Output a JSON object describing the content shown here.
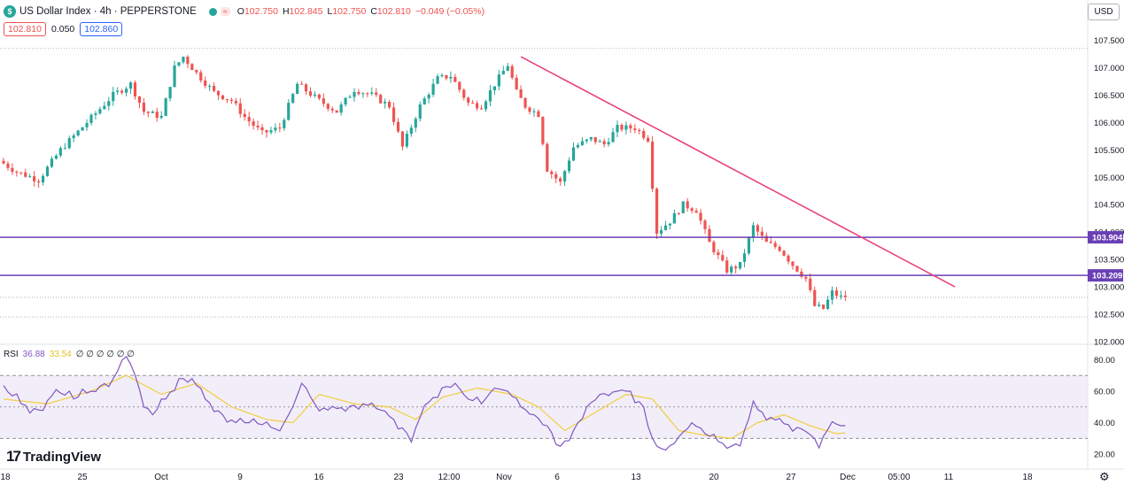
{
  "header": {
    "symbol_badge": "$",
    "title": "US Dollar Index · 4h · PEPPERSTONE",
    "status_pill": "≈",
    "ohlc": [
      {
        "k": "O",
        "v": "102.750"
      },
      {
        "k": "H",
        "v": "102.845"
      },
      {
        "k": "L",
        "v": "102.750"
      },
      {
        "k": "C",
        "v": "102.810"
      },
      {
        "k": "",
        "v": "−0.049 (−0.05%)"
      }
    ],
    "bid": "102.810",
    "spread": "0.050",
    "ask": "102.860"
  },
  "currency_button": "USD",
  "rsi_legend": {
    "label": "RSI",
    "rsi": "36.88",
    "ma": "33.54",
    "extra": "∅ ∅ ∅ ∅ ∅ ∅"
  },
  "logo_text": "TradingView",
  "colors": {
    "up": "#26a69a",
    "down": "#ef5350",
    "trendline": "#e9417d",
    "level": "#6a3fb5",
    "rsi": "#7e57c2",
    "rsi_ma": "#f2d04b",
    "rsi_band": "#ede7f6"
  },
  "chart_data": [
    {
      "type": "candlestick",
      "symbol": "US Dollar Index",
      "interval": "4h",
      "x_ticks": [
        "18",
        "25",
        "Oct",
        "9",
        "16",
        "23",
        "12:00",
        "Nov",
        "6",
        "13",
        "20",
        "27",
        "Dec",
        "05:00",
        "11",
        "18"
      ],
      "y_ticks": [
        102.0,
        102.5,
        103.0,
        103.5,
        104.0,
        104.5,
        105.0,
        105.5,
        106.0,
        106.5,
        107.0,
        107.5
      ],
      "y_tick_labels": [
        "102.000",
        "102.500",
        "103.000",
        "103.500",
        "104.000",
        "104.500",
        "105.000",
        "105.500",
        "106.000",
        "106.500",
        "107.000",
        "107.500"
      ],
      "ylim": [
        102.0,
        107.75
      ],
      "price_path": [
        {
          "i": 0,
          "p": 105.3
        },
        {
          "i": 4,
          "p": 105.1
        },
        {
          "i": 9,
          "p": 104.95
        },
        {
          "i": 14,
          "p": 105.5
        },
        {
          "i": 20,
          "p": 106.0
        },
        {
          "i": 26,
          "p": 106.5
        },
        {
          "i": 30,
          "p": 106.7
        },
        {
          "i": 33,
          "p": 106.2
        },
        {
          "i": 37,
          "p": 106.1
        },
        {
          "i": 40,
          "p": 107.0
        },
        {
          "i": 42,
          "p": 107.2
        },
        {
          "i": 45,
          "p": 106.9
        },
        {
          "i": 49,
          "p": 106.55
        },
        {
          "i": 53,
          "p": 106.4
        },
        {
          "i": 56,
          "p": 106.1
        },
        {
          "i": 60,
          "p": 105.8
        },
        {
          "i": 64,
          "p": 105.9
        },
        {
          "i": 68,
          "p": 106.7
        },
        {
          "i": 73,
          "p": 106.4
        },
        {
          "i": 77,
          "p": 106.2
        },
        {
          "i": 81,
          "p": 106.6
        },
        {
          "i": 85,
          "p": 106.5
        },
        {
          "i": 89,
          "p": 106.3
        },
        {
          "i": 92,
          "p": 105.55
        },
        {
          "i": 96,
          "p": 106.3
        },
        {
          "i": 100,
          "p": 106.8
        },
        {
          "i": 103,
          "p": 106.85
        },
        {
          "i": 107,
          "p": 106.35
        },
        {
          "i": 110,
          "p": 106.3
        },
        {
          "i": 113,
          "p": 106.7
        },
        {
          "i": 116,
          "p": 107.05
        },
        {
          "i": 118,
          "p": 106.55
        },
        {
          "i": 120,
          "p": 106.3
        },
        {
          "i": 123,
          "p": 106.15
        },
        {
          "i": 125,
          "p": 105.15
        },
        {
          "i": 128,
          "p": 104.9
        },
        {
          "i": 131,
          "p": 105.55
        },
        {
          "i": 135,
          "p": 105.7
        },
        {
          "i": 138,
          "p": 105.6
        },
        {
          "i": 141,
          "p": 105.9
        },
        {
          "i": 145,
          "p": 105.9
        },
        {
          "i": 148,
          "p": 105.7
        },
        {
          "i": 150,
          "p": 104.0
        },
        {
          "i": 153,
          "p": 104.2
        },
        {
          "i": 156,
          "p": 104.5
        },
        {
          "i": 159,
          "p": 104.4
        },
        {
          "i": 162,
          "p": 103.8
        },
        {
          "i": 166,
          "p": 103.3
        },
        {
          "i": 169,
          "p": 103.4
        },
        {
          "i": 172,
          "p": 104.1
        },
        {
          "i": 175,
          "p": 103.8
        },
        {
          "i": 178,
          "p": 103.7
        },
        {
          "i": 181,
          "p": 103.4
        },
        {
          "i": 184,
          "p": 103.15
        },
        {
          "i": 186,
          "p": 102.65
        },
        {
          "i": 188,
          "p": 102.6
        },
        {
          "i": 190,
          "p": 102.9
        },
        {
          "i": 192,
          "p": 102.81
        }
      ],
      "candle_count": 193,
      "last_price": 102.81,
      "horizontal_levels": [
        {
          "label": "103.904",
          "value": 103.904
        },
        {
          "label": "103.209",
          "value": 103.209
        }
      ],
      "dotted_levels": [
        107.35,
        102.81,
        102.45
      ],
      "trendline": {
        "from": {
          "i": 118,
          "p": 107.2
        },
        "to": {
          "i": 217,
          "p": 103.0
        }
      }
    },
    {
      "type": "line",
      "name": "RSI",
      "series": [
        {
          "name": "RSI",
          "value": 36.88
        },
        {
          "name": "MA",
          "value": 33.54
        }
      ],
      "y_ticks": [
        20,
        40,
        60,
        80
      ],
      "y_tick_labels": [
        "20.00",
        "40.00",
        "60.00",
        "80.00"
      ],
      "ylim": [
        15,
        87
      ],
      "bands": [
        30,
        50,
        70
      ],
      "rsi_path": [
        {
          "i": 0,
          "v": 62
        },
        {
          "i": 4,
          "v": 52
        },
        {
          "i": 8,
          "v": 48
        },
        {
          "i": 12,
          "v": 60
        },
        {
          "i": 16,
          "v": 55
        },
        {
          "i": 20,
          "v": 60
        },
        {
          "i": 25,
          "v": 68
        },
        {
          "i": 28,
          "v": 82
        },
        {
          "i": 30,
          "v": 72
        },
        {
          "i": 32,
          "v": 50
        },
        {
          "i": 34,
          "v": 45
        },
        {
          "i": 37,
          "v": 55
        },
        {
          "i": 40,
          "v": 68
        },
        {
          "i": 43,
          "v": 68
        },
        {
          "i": 46,
          "v": 55
        },
        {
          "i": 50,
          "v": 45
        },
        {
          "i": 53,
          "v": 40
        },
        {
          "i": 57,
          "v": 40
        },
        {
          "i": 60,
          "v": 38
        },
        {
          "i": 63,
          "v": 35
        },
        {
          "i": 66,
          "v": 50
        },
        {
          "i": 68,
          "v": 65
        },
        {
          "i": 71,
          "v": 52
        },
        {
          "i": 74,
          "v": 48
        },
        {
          "i": 78,
          "v": 50
        },
        {
          "i": 82,
          "v": 52
        },
        {
          "i": 86,
          "v": 48
        },
        {
          "i": 90,
          "v": 40
        },
        {
          "i": 93,
          "v": 30
        },
        {
          "i": 96,
          "v": 50
        },
        {
          "i": 100,
          "v": 62
        },
        {
          "i": 103,
          "v": 65
        },
        {
          "i": 106,
          "v": 55
        },
        {
          "i": 109,
          "v": 52
        },
        {
          "i": 112,
          "v": 62
        },
        {
          "i": 115,
          "v": 60
        },
        {
          "i": 118,
          "v": 50
        },
        {
          "i": 121,
          "v": 45
        },
        {
          "i": 124,
          "v": 38
        },
        {
          "i": 127,
          "v": 25
        },
        {
          "i": 130,
          "v": 35
        },
        {
          "i": 133,
          "v": 50
        },
        {
          "i": 136,
          "v": 58
        },
        {
          "i": 140,
          "v": 60
        },
        {
          "i": 143,
          "v": 60
        },
        {
          "i": 146,
          "v": 50
        },
        {
          "i": 148,
          "v": 30
        },
        {
          "i": 150,
          "v": 20
        },
        {
          "i": 153,
          "v": 28
        },
        {
          "i": 157,
          "v": 40
        },
        {
          "i": 160,
          "v": 33
        },
        {
          "i": 163,
          "v": 28
        },
        {
          "i": 166,
          "v": 25
        },
        {
          "i": 168,
          "v": 28
        },
        {
          "i": 171,
          "v": 50
        },
        {
          "i": 174,
          "v": 45
        },
        {
          "i": 177,
          "v": 40
        },
        {
          "i": 180,
          "v": 38
        },
        {
          "i": 183,
          "v": 35
        },
        {
          "i": 186,
          "v": 27
        },
        {
          "i": 189,
          "v": 40
        },
        {
          "i": 192,
          "v": 37
        }
      ],
      "ma_path": [
        {
          "i": 0,
          "v": 55
        },
        {
          "i": 10,
          "v": 52
        },
        {
          "i": 20,
          "v": 60
        },
        {
          "i": 28,
          "v": 70
        },
        {
          "i": 36,
          "v": 58
        },
        {
          "i": 44,
          "v": 65
        },
        {
          "i": 52,
          "v": 50
        },
        {
          "i": 60,
          "v": 42
        },
        {
          "i": 66,
          "v": 40
        },
        {
          "i": 72,
          "v": 58
        },
        {
          "i": 80,
          "v": 52
        },
        {
          "i": 88,
          "v": 50
        },
        {
          "i": 94,
          "v": 42
        },
        {
          "i": 100,
          "v": 56
        },
        {
          "i": 108,
          "v": 62
        },
        {
          "i": 116,
          "v": 58
        },
        {
          "i": 122,
          "v": 50
        },
        {
          "i": 128,
          "v": 35
        },
        {
          "i": 134,
          "v": 45
        },
        {
          "i": 142,
          "v": 58
        },
        {
          "i": 148,
          "v": 55
        },
        {
          "i": 154,
          "v": 35
        },
        {
          "i": 160,
          "v": 32
        },
        {
          "i": 166,
          "v": 30
        },
        {
          "i": 172,
          "v": 40
        },
        {
          "i": 178,
          "v": 45
        },
        {
          "i": 184,
          "v": 38
        },
        {
          "i": 190,
          "v": 33
        },
        {
          "i": 192,
          "v": 33.5
        }
      ]
    }
  ]
}
